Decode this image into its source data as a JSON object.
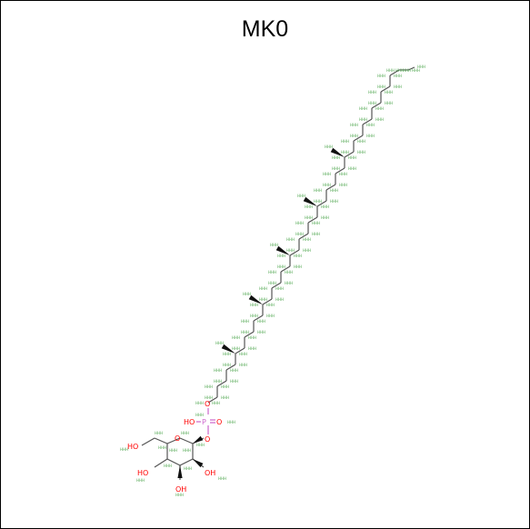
{
  "title": "MK0",
  "colors": {
    "bond": "#555555",
    "oxygen": "#ff0000",
    "phosphorus": "#cc66cc",
    "hydrogen_label": "#55aa55",
    "wedge": "#111111"
  },
  "atom_labels": {
    "ho_primary": "HO",
    "ho_2": "HO",
    "oh_3": "OH",
    "oh_4": "OH",
    "ring_o": "O",
    "glyco_o": "O",
    "phos_p": "P",
    "phos_ho": "HO",
    "phos_eq_o": "O",
    "phos_ester_o": "O"
  },
  "hydrogen_label": "H"
}
